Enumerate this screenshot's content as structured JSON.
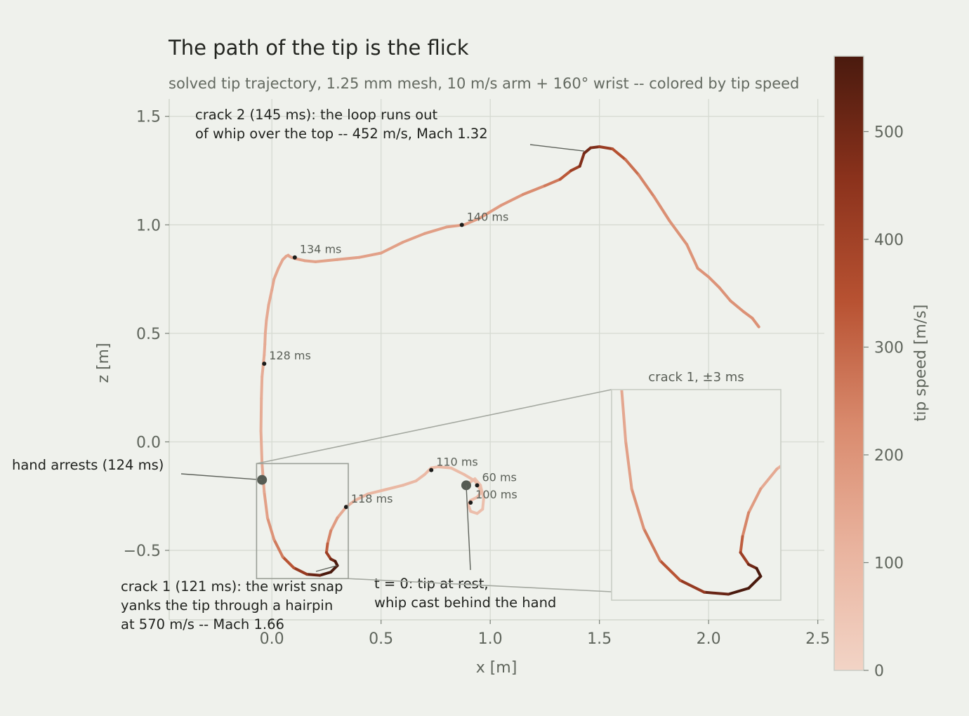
{
  "chart_data": {
    "type": "line",
    "title": "The path of the tip is the flick",
    "subtitle": "solved tip trajectory, 1.25 mm mesh, 10 m/s arm + 160° wrist -- colored by tip speed",
    "xlabel": "x  [m]",
    "ylabel": "z  [m]",
    "xlim": [
      -0.47,
      2.53
    ],
    "ylim": [
      -0.82,
      1.58
    ],
    "xticks": [
      0.0,
      0.5,
      1.0,
      1.5,
      2.0,
      2.5
    ],
    "xtick_labels": [
      "0.0",
      "0.5",
      "1.0",
      "1.5",
      "2.0",
      "2.5"
    ],
    "yticks": [
      -0.5,
      0.0,
      0.5,
      1.0,
      1.5
    ],
    "ytick_labels": [
      "−0.5",
      "0.0",
      "0.5",
      "1.0",
      "1.5"
    ],
    "grid": true,
    "series": [
      {
        "x": [
          0.89,
          0.93,
          0.955,
          0.97,
          0.965,
          0.94,
          0.91,
          0.9,
          0.91,
          0.94,
          0.96,
          0.93,
          0.88,
          0.82,
          0.76,
          0.73,
          0.7,
          0.66,
          0.6,
          0.52,
          0.44,
          0.38,
          0.34,
          0.3,
          0.27,
          0.255,
          0.25,
          0.27,
          0.29,
          0.3,
          0.27,
          0.22,
          0.16,
          0.1,
          0.05,
          0.01,
          -0.02,
          -0.035,
          -0.045,
          -0.05,
          -0.048,
          -0.045,
          -0.04,
          -0.035,
          -0.032,
          -0.03,
          -0.025,
          -0.015,
          0.0,
          0.01,
          0.03,
          0.05,
          0.065,
          0.075,
          0.08,
          0.09,
          0.105,
          0.15,
          0.2,
          0.3,
          0.4,
          0.5,
          0.6,
          0.7,
          0.8,
          0.88,
          0.95,
          1.05,
          1.15,
          1.25,
          1.32,
          1.37,
          1.41,
          1.43,
          1.46,
          1.5,
          1.56,
          1.62,
          1.68,
          1.75,
          1.82,
          1.9,
          1.95,
          2.0,
          2.05,
          2.1,
          2.16,
          2.2,
          2.23
        ],
        "y": [
          -0.2,
          -0.17,
          -0.2,
          -0.26,
          -0.31,
          -0.33,
          -0.32,
          -0.29,
          -0.27,
          -0.255,
          -0.23,
          -0.18,
          -0.15,
          -0.12,
          -0.115,
          -0.12,
          -0.15,
          -0.18,
          -0.2,
          -0.22,
          -0.24,
          -0.27,
          -0.3,
          -0.35,
          -0.41,
          -0.47,
          -0.51,
          -0.54,
          -0.55,
          -0.57,
          -0.6,
          -0.615,
          -0.61,
          -0.58,
          -0.53,
          -0.45,
          -0.35,
          -0.23,
          -0.1,
          0.05,
          0.2,
          0.3,
          0.35,
          0.4,
          0.45,
          0.5,
          0.56,
          0.63,
          0.7,
          0.75,
          0.8,
          0.84,
          0.855,
          0.86,
          0.855,
          0.85,
          0.845,
          0.835,
          0.83,
          0.84,
          0.85,
          0.87,
          0.92,
          0.96,
          0.99,
          1.0,
          1.03,
          1.09,
          1.14,
          1.18,
          1.21,
          1.25,
          1.27,
          1.33,
          1.355,
          1.36,
          1.35,
          1.3,
          1.23,
          1.13,
          1.02,
          0.91,
          0.8,
          0.76,
          0.71,
          0.65,
          0.6,
          0.57,
          0.53
        ],
        "color_by": "tip speed [m/s]"
      }
    ],
    "time_markers": [
      {
        "label": "60 ms",
        "x": 0.94,
        "y": -0.2
      },
      {
        "label": "100 ms",
        "x": 0.91,
        "y": -0.28
      },
      {
        "label": "110 ms",
        "x": 0.73,
        "y": -0.13
      },
      {
        "label": "118 ms",
        "x": 0.34,
        "y": -0.3
      },
      {
        "label": "128 ms",
        "x": -0.035,
        "y": 0.36
      },
      {
        "label": "134 ms",
        "x": 0.105,
        "y": 0.85
      },
      {
        "label": "140 ms",
        "x": 0.87,
        "y": 1.0
      }
    ],
    "special_points": [
      {
        "name": "start",
        "x": 0.89,
        "y": -0.2
      },
      {
        "name": "hand",
        "x": -0.045,
        "y": -0.175
      }
    ],
    "annotations": [
      {
        "text": [
          "crack 2 (145 ms): the loop runs out",
          "of whip over the top -- 452 m/s, Mach 1.32"
        ],
        "x": 1.43,
        "y": 1.34
      },
      {
        "text": [
          "hand arrests (124 ms)"
        ],
        "x": -0.045,
        "y": -0.175
      },
      {
        "text": [
          "crack 1 (121 ms): the wrist snap",
          "yanks the tip through a hairpin",
          "at 570 m/s -- Mach 1.66"
        ],
        "x": 0.3,
        "y": -0.57
      },
      {
        "text": [
          "t = 0: tip at rest,",
          "whip cast behind the hand"
        ],
        "x": 0.89,
        "y": -0.2
      }
    ],
    "inset": {
      "title": "crack 1, ±3 ms",
      "xlim": [
        -0.07,
        0.35
      ],
      "ylim": [
        -0.63,
        -0.1
      ]
    },
    "colorbar": {
      "label": "tip speed  [m/s]",
      "range": [
        0,
        570
      ],
      "ticks": [
        0,
        100,
        200,
        300,
        400,
        500
      ],
      "tick_labels": [
        "0",
        "100",
        "200",
        "300",
        "400",
        "500"
      ],
      "colors": [
        "#f2d4c6",
        "#e9b39e",
        "#d98a6d",
        "#b85232",
        "#8b321c",
        "#4a1a0e"
      ]
    }
  }
}
